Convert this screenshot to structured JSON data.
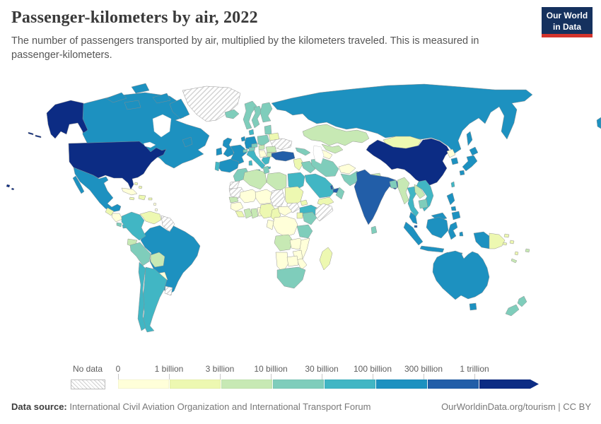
{
  "header": {
    "title": "Passenger-kilometers by air, 2022",
    "subtitle": "The number of passengers transported by air, multiplied by the kilometers traveled. This is measured in passenger-kilometers."
  },
  "logo": {
    "line1": "Our World",
    "line2": "in Data",
    "navy": "#15315E",
    "red": "#D3342C"
  },
  "legend": {
    "no_data_label": "No data",
    "tick_labels": [
      "0",
      "1 billion",
      "3 billion",
      "10 billion",
      "30 billion",
      "100 billion",
      "300 billion",
      "1 trillion"
    ],
    "bin_colors": [
      "#ffffd9",
      "#edf8b1",
      "#c7e9b4",
      "#7fcdbb",
      "#41b6c4",
      "#1d91c0",
      "#225ea8",
      "#0c2c84"
    ]
  },
  "footer": {
    "source_label": "Data source:",
    "source_text": " International Civil Aviation Organization and International Transport Forum",
    "right_text": "OurWorldinData.org/tourism | CC BY"
  },
  "chart_data": {
    "type": "choropleth",
    "title": "Passenger-kilometers by air, 2022",
    "unit": "passenger-kilometers",
    "legend_position": "bottom",
    "bin_edge_labels": [
      "0",
      "1 billion",
      "3 billion",
      "10 billion",
      "30 billion",
      "100 billion",
      "300 billion",
      "1 trillion"
    ],
    "bin_range_labels": [
      "0-1 billion",
      "1-3 billion",
      "3-10 billion",
      "10-30 billion",
      "30-100 billion",
      "100-300 billion",
      "300 billion-1 trillion",
      "over 1 trillion"
    ],
    "no_data_bin": 0,
    "countries": {
      "united-states": 8,
      "china": 8,
      "india": 7,
      "turkey": 7,
      "uae": 7,
      "qatar": 7,
      "singapore": 7,
      "canada": 6,
      "mexico": 6,
      "brazil": 6,
      "russia": 6,
      "united-kingdom": 6,
      "ireland": 6,
      "france": 6,
      "spain": 6,
      "germany": 6,
      "netherlands": 6,
      "japan": 6,
      "south-korea": 6,
      "australia": 6,
      "indonesia": 6,
      "malaysia": 6,
      "philippines": 6,
      "colombia": 5,
      "argentina": 5,
      "chile": 5,
      "panama": 5,
      "egypt": 5,
      "saudi-arabia": 5,
      "ethiopia": 5,
      "vietnam": 5,
      "thailand": 5,
      "greece": 5,
      "italy": 5,
      "portugal": 5,
      "denmark": 5,
      "taiwan": 5,
      "peru": 4,
      "norway": 4,
      "sweden": 4,
      "finland": 4,
      "iceland": 4,
      "poland": 4,
      "baltics": 4,
      "czechia": 4,
      "austria": 4,
      "switzerland": 4,
      "morocco": 4,
      "tunisia": 4,
      "south-africa": 4,
      "kenya": 4,
      "tanzania": 4,
      "iran": 4,
      "iraq": 4,
      "pakistan": 4,
      "oman": 4,
      "caucasus": 4,
      "sri-lanka": 4,
      "bangladesh": 4,
      "cambodia": 4,
      "new-zealand": 4,
      "costa-rica": 4,
      "algeria": 3,
      "libya": 3,
      "bolivia": 3,
      "ecuador": 3,
      "angola": 3,
      "ghana": 3,
      "ivory-coast": 3,
      "senegal": 3,
      "romania": 3,
      "bulgaria": 3,
      "hungary": 3,
      "kazakhstan": 3,
      "uzbekistan": 3,
      "myanmar": 3,
      "laos": 3,
      "nepal": 3,
      "fiji": 3,
      "new-caledonia": 3,
      "venezuela": 2,
      "sudan": 2,
      "nigeria": 2,
      "cameroon": 2,
      "yemen": 2,
      "syria-levant": 2,
      "madagascar": 2,
      "mongolia": 2,
      "papua-new-guinea": 2,
      "belarus": 2,
      "hispaniola": 2,
      "jamaica": 2,
      "puerto-rico": 2,
      "bahamas": 2,
      "guatemala": 2,
      "sierra-leone": 2,
      "eritrea": 2,
      "uganda": 2,
      "solomon": 2,
      "vanuatu": 2,
      "paraguay": 1,
      "cuba": 1,
      "mali": 1,
      "niger": 1,
      "namibia": 1,
      "botswana": 1,
      "zambia": 1,
      "zimbabwe": 1,
      "mozambique": 1,
      "drc": 1,
      "car": 1,
      "congo-gabon": 1,
      "togo-benin": 1,
      "honduras-nicaragua": 1,
      "north-korea": 1,
      "afghanistan": 1,
      "turkmenistan": 1,
      "lesser-antilles": 1,
      "balkans": 1,
      "guinea": 1,
      "greenland": 0,
      "ukraine": 0,
      "mauritania": 0,
      "western-sahara": 0,
      "chad": 0,
      "south-sudan": 0,
      "somalia": 0,
      "guyana-suriname": 0,
      "uruguay": 0
    }
  }
}
